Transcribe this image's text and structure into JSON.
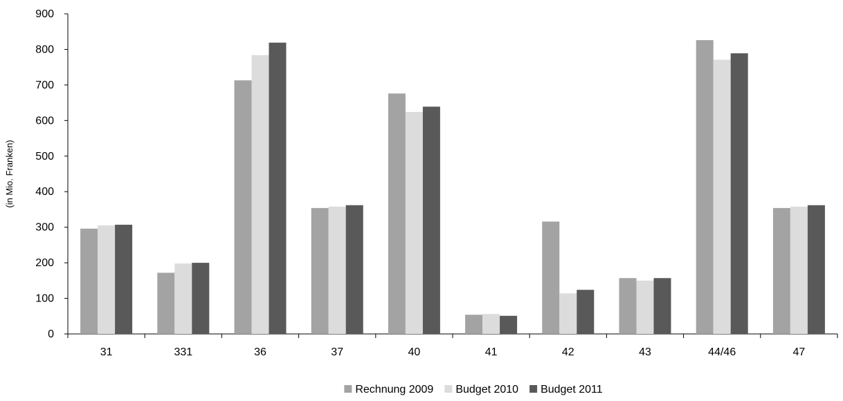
{
  "chart_data": {
    "type": "bar",
    "categories": [
      "31",
      "331",
      "36",
      "37",
      "40",
      "41",
      "42",
      "43",
      "44/46",
      "47"
    ],
    "series": [
      {
        "name": "Rechnung 2009",
        "color": "#a3a3a3",
        "values": [
          296,
          172,
          713,
          354,
          676,
          54,
          316,
          157,
          826,
          354
        ]
      },
      {
        "name": "Budget 2010",
        "color": "#dcdcdc",
        "values": [
          305,
          198,
          784,
          358,
          624,
          56,
          114,
          150,
          771,
          358
        ]
      },
      {
        "name": "Budget 2011",
        "color": "#595959",
        "values": [
          307,
          200,
          819,
          362,
          639,
          51,
          124,
          157,
          789,
          362
        ]
      }
    ],
    "title": "",
    "xlabel": "",
    "ylabel": "(in Mio. Franken)",
    "ylim": [
      0,
      900
    ],
    "yticks": [
      0,
      100,
      200,
      300,
      400,
      500,
      600,
      700,
      800,
      900
    ],
    "grid": false,
    "legend_position": "bottom-center"
  }
}
